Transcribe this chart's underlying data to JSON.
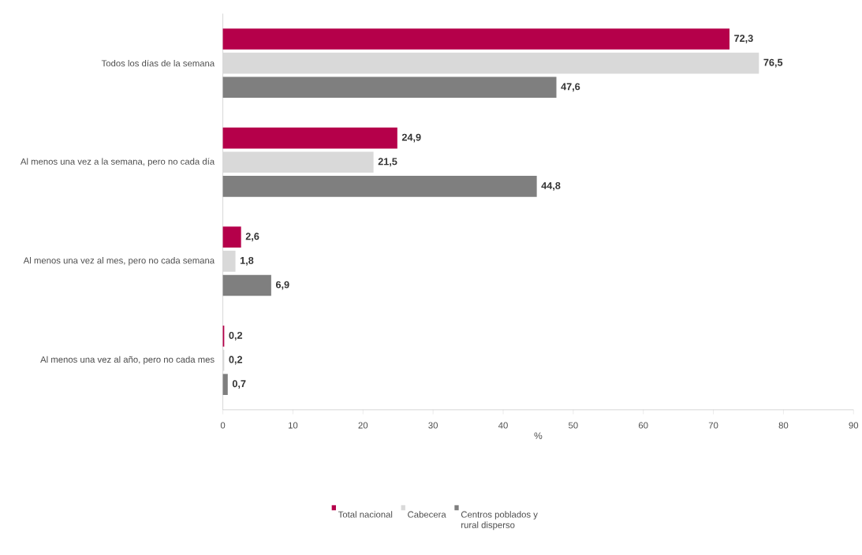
{
  "chart_data": {
    "type": "bar",
    "orientation": "horizontal",
    "xlabel": "%",
    "categories": [
      "Todos los días de la semana",
      "Al menos una vez a la semana, pero no cada día",
      "Al menos una vez al mes, pero no cada semana",
      "Al menos una vez al año, pero no cada mes"
    ],
    "series": [
      {
        "name": "Total nacional",
        "color": "#b5004a",
        "values": [
          72.3,
          24.9,
          2.6,
          0.2
        ],
        "value_labels": [
          "72,3",
          "24,9",
          "2,6",
          "0,2"
        ]
      },
      {
        "name": "Cabecera",
        "color": "#d9d9d9",
        "values": [
          76.5,
          21.5,
          1.8,
          0.2
        ],
        "value_labels": [
          "76,5",
          "21,5",
          "1,8",
          "0,2"
        ]
      },
      {
        "name": "Centros poblados y rural disperso",
        "color": "#7f7f7f",
        "values": [
          47.6,
          44.8,
          6.9,
          0.7
        ],
        "value_labels": [
          "47,6",
          "44,8",
          "6,9",
          "0,7"
        ]
      }
    ],
    "xlim": [
      0,
      90
    ],
    "xticks": [
      0,
      10,
      20,
      30,
      40,
      50,
      60,
      70,
      80,
      90
    ],
    "grid": false,
    "legend": "bottom"
  }
}
